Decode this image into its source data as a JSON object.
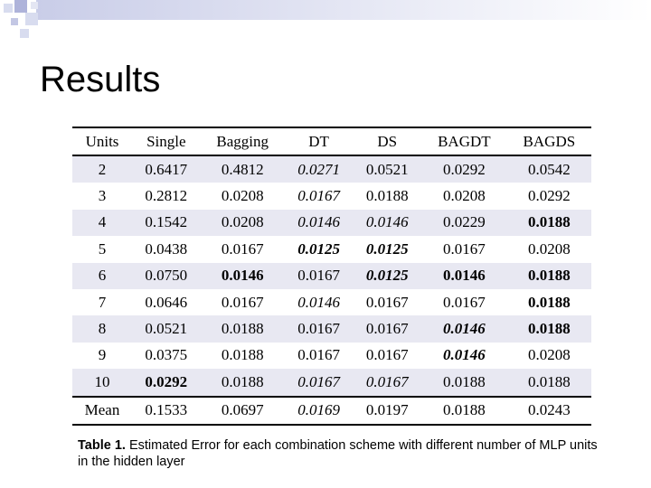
{
  "title": "Results",
  "table": {
    "headers": [
      "Units",
      "Single",
      "Bagging",
      "DT",
      "DS",
      "BAGDT",
      "BAGDS"
    ],
    "rows": [
      [
        "2",
        "0.6417",
        "0.4812",
        "0.0271",
        "0.0521",
        "0.0292",
        "0.0542"
      ],
      [
        "3",
        "0.2812",
        "0.0208",
        "0.0167",
        "0.0188",
        "0.0208",
        "0.0292"
      ],
      [
        "4",
        "0.1542",
        "0.0208",
        "0.0146",
        "0.0146",
        "0.0229",
        "0.0188"
      ],
      [
        "5",
        "0.0438",
        "0.0167",
        "0.0125",
        "0.0125",
        "0.0167",
        "0.0208"
      ],
      [
        "6",
        "0.0750",
        "0.0146",
        "0.0167",
        "0.0125",
        "0.0146",
        "0.0188"
      ],
      [
        "7",
        "0.0646",
        "0.0167",
        "0.0146",
        "0.0167",
        "0.0167",
        "0.0188"
      ],
      [
        "8",
        "0.0521",
        "0.0188",
        "0.0167",
        "0.0167",
        "0.0146",
        "0.0188"
      ],
      [
        "9",
        "0.0375",
        "0.0188",
        "0.0167",
        "0.0167",
        "0.0146",
        "0.0208"
      ],
      [
        "10",
        "0.0292",
        "0.0188",
        "0.0167",
        "0.0167",
        "0.0188",
        "0.0188"
      ],
      [
        "Mean",
        "0.1533",
        "0.0697",
        "0.0169",
        "0.0197",
        "0.0188",
        "0.0243"
      ]
    ],
    "styles": [
      [
        "",
        "",
        "",
        "i",
        "",
        "",
        ""
      ],
      [
        "",
        "",
        "",
        "i",
        "",
        "",
        ""
      ],
      [
        "",
        "",
        "",
        "i",
        "i",
        "",
        "b"
      ],
      [
        "",
        "",
        "",
        "bi",
        "bi",
        "",
        ""
      ],
      [
        "",
        "",
        "b",
        "",
        "bi",
        "b",
        "b"
      ],
      [
        "",
        "",
        "",
        "i",
        "",
        "",
        "b"
      ],
      [
        "",
        "",
        "",
        "",
        "",
        "bi",
        "b"
      ],
      [
        "",
        "",
        "",
        "",
        "",
        "bi",
        ""
      ],
      [
        "",
        "b",
        "",
        "i",
        "i",
        "",
        ""
      ],
      [
        "",
        "",
        "",
        "i",
        "",
        "",
        ""
      ]
    ],
    "shaded_rows": [
      0,
      2,
      4,
      6,
      8
    ]
  },
  "caption": {
    "label": "Table 1.",
    "text": " Estimated Error for each combination scheme with different number of MLP units in the hidden layer"
  },
  "colors": {
    "decoration_blue": "#b8bde0",
    "decoration_fill": "#d8dcef",
    "row_shade": "#e8e8f2"
  }
}
